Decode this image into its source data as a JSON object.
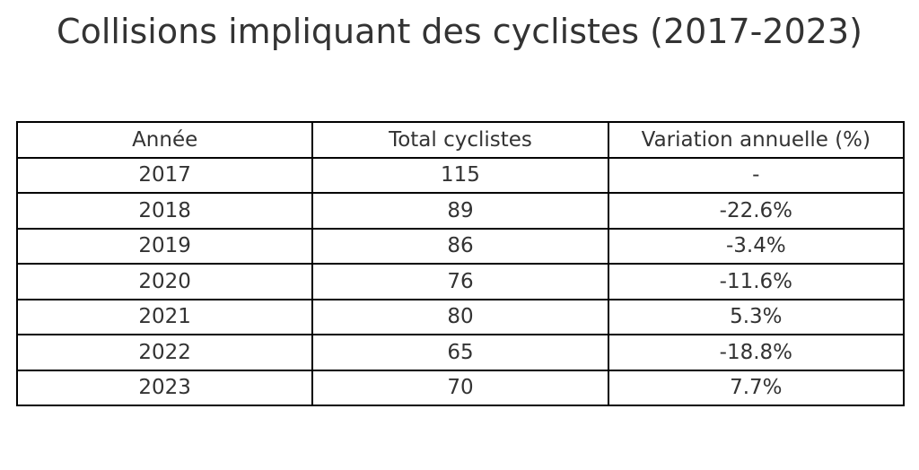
{
  "chart_data": {
    "type": "table",
    "title": "Collisions impliquant des cyclistes (2017-2023)",
    "columns": [
      "Année",
      "Total cyclistes",
      "Variation annuelle (%)"
    ],
    "rows": [
      [
        "2017",
        "115",
        "-"
      ],
      [
        "2018",
        "89",
        "-22.6%"
      ],
      [
        "2019",
        "86",
        "-3.4%"
      ],
      [
        "2020",
        "76",
        "-11.6%"
      ],
      [
        "2021",
        "80",
        "5.3%"
      ],
      [
        "2022",
        "65",
        "-18.8%"
      ],
      [
        "2023",
        "70",
        "7.7%"
      ]
    ]
  }
}
